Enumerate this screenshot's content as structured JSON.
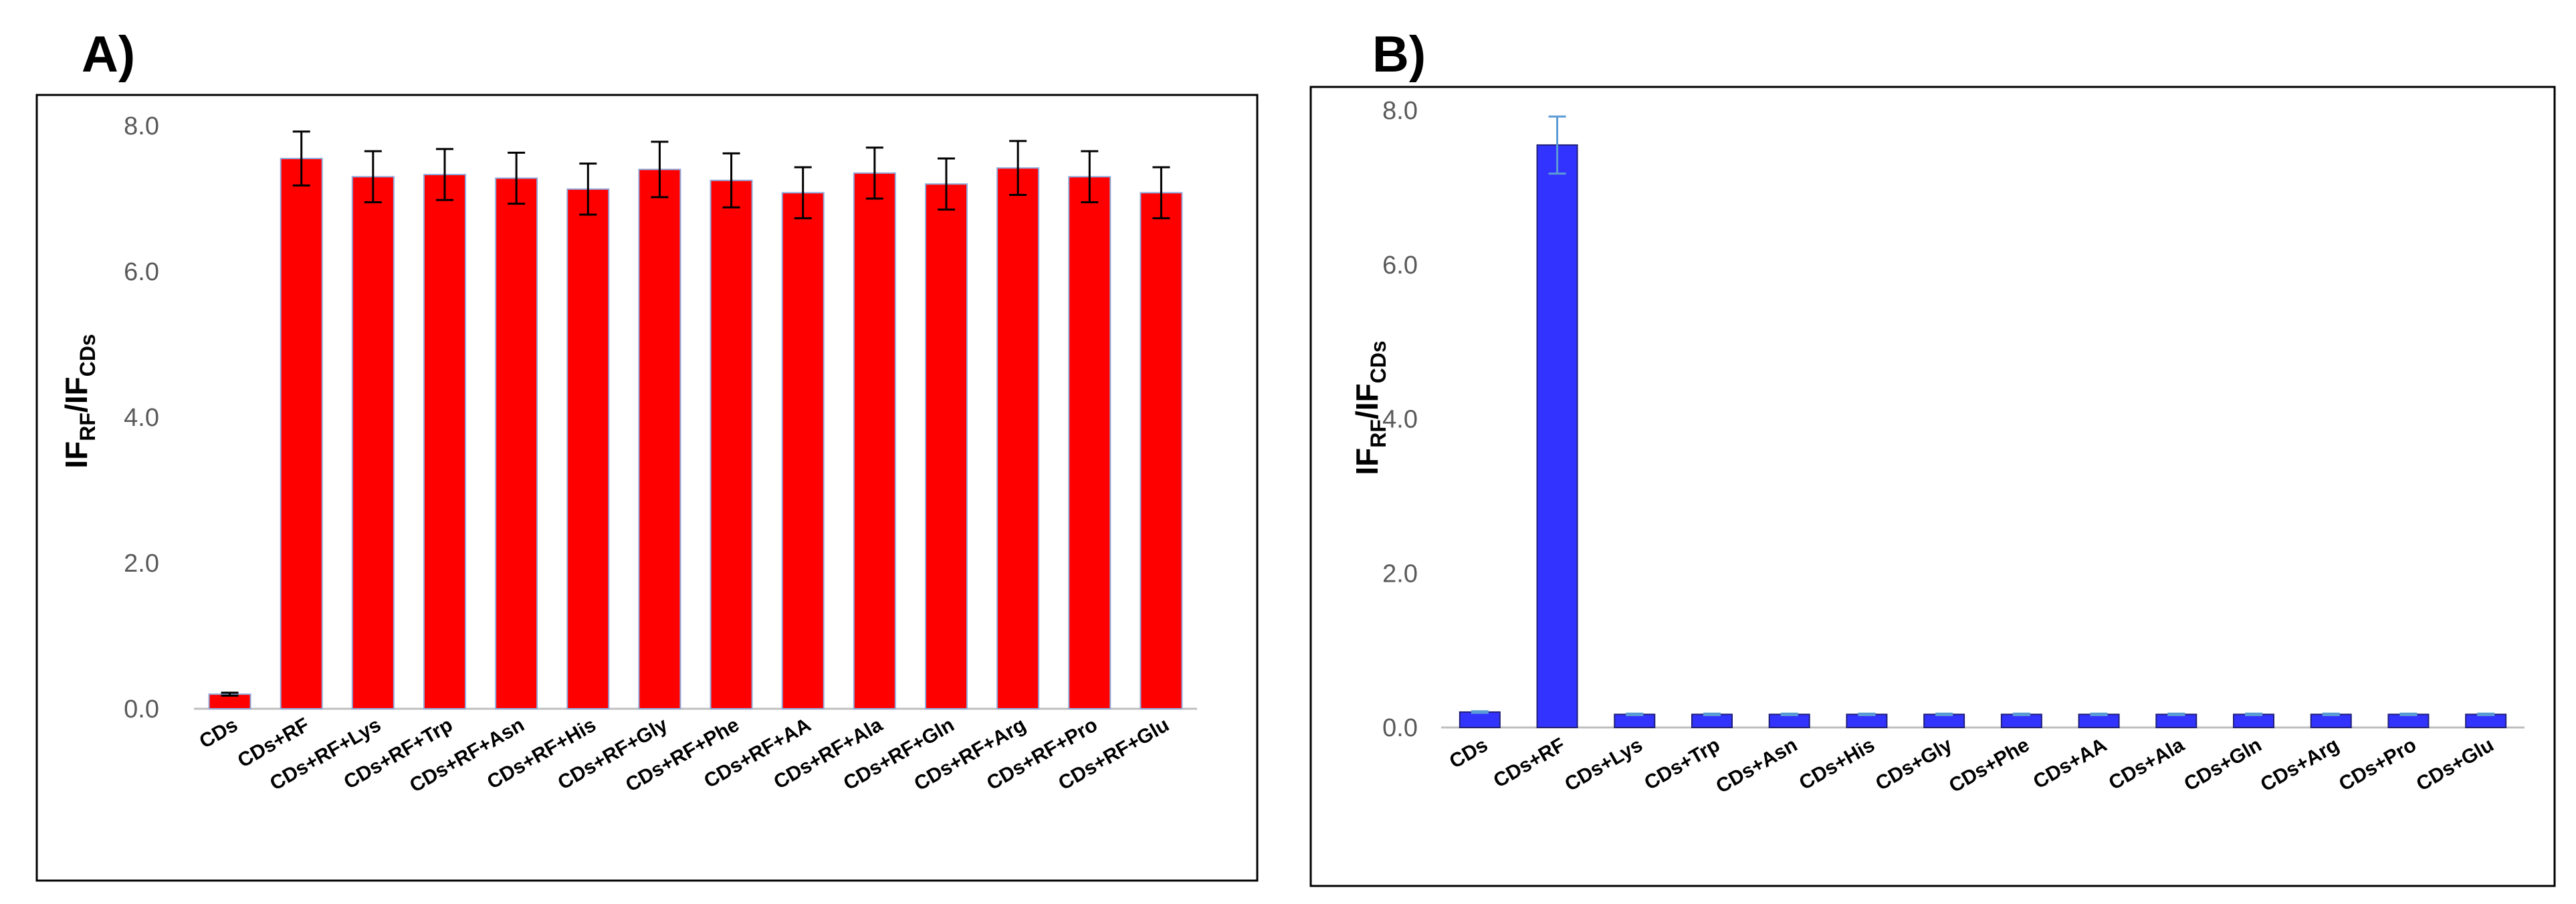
{
  "panels": [
    {
      "label": "A)",
      "chart_data": {
        "type": "bar",
        "categories": [
          "CDs",
          "CDs+RF",
          "CDs+RF+Lys",
          "CDs+RF+Trp",
          "CDs+RF+Asn",
          "CDs+RF+His",
          "CDs+RF+Gly",
          "CDs+RF+Phe",
          "CDs+RF+AA",
          "CDs+RF+Ala",
          "CDs+RF+Gln",
          "CDs+RF+Arg",
          "CDs+RF+Pro",
          "CDs+RF+Glu"
        ],
        "values": [
          0.2,
          7.55,
          7.3,
          7.33,
          7.28,
          7.13,
          7.4,
          7.25,
          7.08,
          7.35,
          7.2,
          7.42,
          7.3,
          7.08
        ],
        "errors": [
          0.02,
          0.37,
          0.35,
          0.35,
          0.35,
          0.35,
          0.38,
          0.37,
          0.35,
          0.35,
          0.35,
          0.37,
          0.35,
          0.35
        ],
        "ylim": [
          0,
          8
        ],
        "yticks": [
          0,
          2,
          4,
          6,
          8
        ],
        "ytick_labels": [
          "0.0",
          "2.0",
          "4.0",
          "6.0",
          "8.0"
        ],
        "ylabel": {
          "main1": "IF",
          "sub1": "RF",
          "main2": "/IF",
          "sub2": "CDs"
        },
        "bar_color": "#ff0000",
        "bar_edge_color": "#8faadc",
        "error_color": "#000000"
      }
    },
    {
      "label": "B)",
      "chart_data": {
        "type": "bar",
        "categories": [
          "CDs",
          "CDs+RF",
          "CDs+Lys",
          "CDs+Trp",
          "CDs+Asn",
          "CDs+His",
          "CDs+Gly",
          "CDs+Phe",
          "CDs+AA",
          "CDs+Ala",
          "CDs+Gln",
          "CDs+Arg",
          "CDs+Pro",
          "CDs+Glu"
        ],
        "values": [
          0.2,
          7.55,
          0.17,
          0.17,
          0.17,
          0.17,
          0.17,
          0.17,
          0.17,
          0.17,
          0.17,
          0.17,
          0.17,
          0.17
        ],
        "errors": [
          0.01,
          0.37,
          0.01,
          0.01,
          0.01,
          0.01,
          0.01,
          0.01,
          0.01,
          0.01,
          0.01,
          0.01,
          0.01,
          0.01
        ],
        "ylim": [
          0,
          8
        ],
        "yticks": [
          0,
          2,
          4,
          6,
          8
        ],
        "ytick_labels": [
          "0.0",
          "2.0",
          "4.0",
          "6.0",
          "8.0"
        ],
        "ylabel": {
          "main1": "IF",
          "sub1": "RF",
          "main2": "/IF",
          "sub2": "CDs"
        },
        "bar_color": "#3333ff",
        "bar_edge_color": "#1f1f7a",
        "error_color": "#5b9bd5"
      }
    }
  ]
}
